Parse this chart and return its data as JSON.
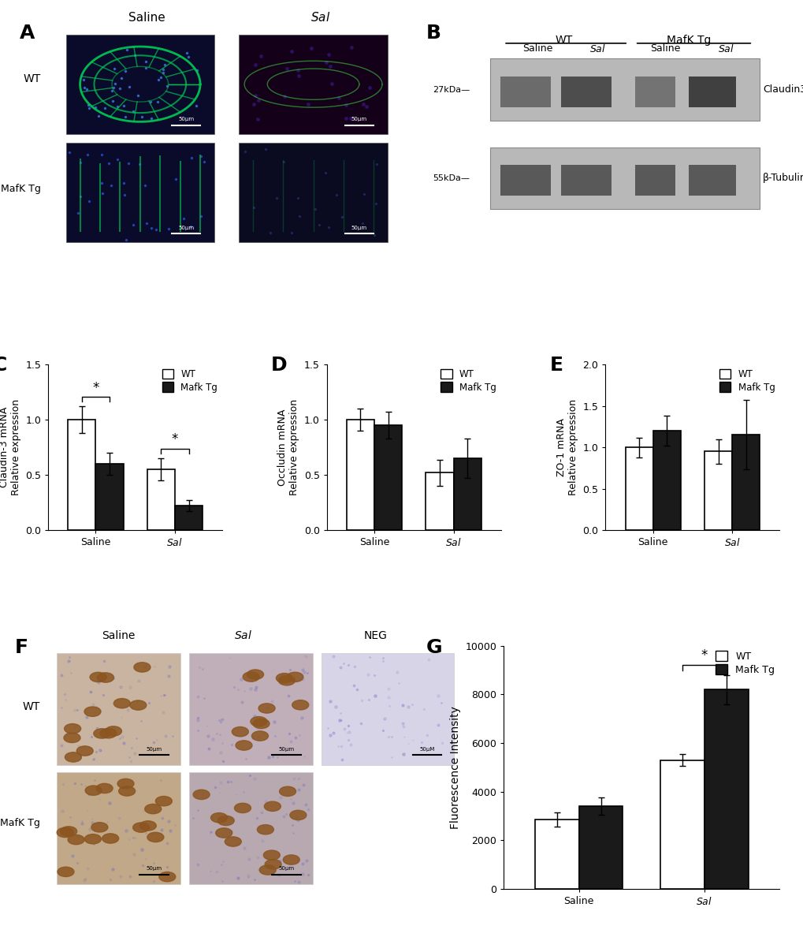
{
  "panel_C": {
    "ylabel": "Claudin-3 mRNA\nRelative expression",
    "ylim": [
      0,
      1.5
    ],
    "yticks": [
      0.0,
      0.5,
      1.0,
      1.5
    ],
    "groups": [
      "Saline",
      "Sal"
    ],
    "WT": [
      1.0,
      0.55
    ],
    "WT_err": [
      0.12,
      0.1
    ],
    "MafkTg": [
      0.6,
      0.22
    ],
    "MafkTg_err": [
      0.1,
      0.05
    ],
    "bar_width": 0.35
  },
  "panel_D": {
    "ylabel": "Occludin mRNA\nRelative expression",
    "ylim": [
      0,
      1.5
    ],
    "yticks": [
      0.0,
      0.5,
      1.0,
      1.5
    ],
    "groups": [
      "Saline",
      "Sal"
    ],
    "WT": [
      1.0,
      0.52
    ],
    "WT_err": [
      0.1,
      0.12
    ],
    "MafkTg": [
      0.95,
      0.65
    ],
    "MafkTg_err": [
      0.12,
      0.18
    ],
    "bar_width": 0.35
  },
  "panel_E": {
    "ylabel": "ZO-1 mRNA\nRelative expression",
    "ylim": [
      0.0,
      2.0
    ],
    "yticks": [
      0.0,
      0.5,
      1.0,
      1.5,
      2.0
    ],
    "groups": [
      "Saline",
      "Sal"
    ],
    "WT": [
      1.0,
      0.95
    ],
    "WT_err": [
      0.12,
      0.15
    ],
    "MafkTg": [
      1.2,
      1.15
    ],
    "MafkTg_err": [
      0.18,
      0.42
    ],
    "bar_width": 0.35
  },
  "panel_G": {
    "ylabel": "Fluorescence Intensity",
    "ylim": [
      0,
      10000
    ],
    "yticks": [
      0,
      2000,
      4000,
      6000,
      8000,
      10000
    ],
    "groups": [
      "Saline",
      "Sal"
    ],
    "WT": [
      2850,
      5300
    ],
    "WT_err": [
      300,
      250
    ],
    "MafkTg": [
      3400,
      8200
    ],
    "MafkTg_err": [
      350,
      600
    ],
    "bar_width": 0.35
  },
  "colors": {
    "WT": "#ffffff",
    "MafkTg": "#1a1a1a",
    "edge": "#000000"
  },
  "background": "#ffffff"
}
